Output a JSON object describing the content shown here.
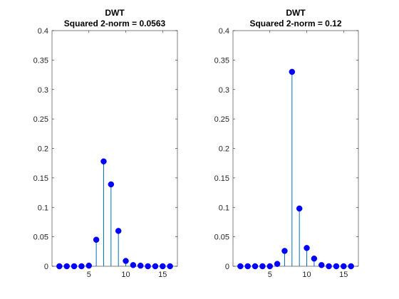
{
  "chart_data": [
    {
      "type": "stem",
      "title": "DWT",
      "subtitle": "Squared 2-norm = 0.0563",
      "x": [
        1,
        2,
        3,
        4,
        5,
        6,
        7,
        8,
        9,
        10,
        11,
        12,
        13,
        14,
        15,
        16
      ],
      "values": [
        0,
        0,
        0,
        0,
        0.001,
        0.045,
        0.178,
        0.139,
        0.06,
        0.009,
        0.002,
        0.001,
        0,
        0,
        0,
        0
      ],
      "xlim": [
        0,
        17
      ],
      "ylim": [
        0,
        0.4
      ],
      "xticks": [
        5,
        10,
        15
      ],
      "yticks": [
        0,
        0.05,
        0.1,
        0.15,
        0.2,
        0.25,
        0.3,
        0.35,
        0.4
      ],
      "ytick_labels": [
        "0",
        "0.05",
        "0.1",
        "0.15",
        "0.2",
        "0.25",
        "0.3",
        "0.35",
        "0.4"
      ],
      "grid": false,
      "stem_color": "#0072BD",
      "marker_color": "#0000FF"
    },
    {
      "type": "stem",
      "title": "DWT",
      "subtitle": "Squared 2-norm = 0.12",
      "x": [
        1,
        2,
        3,
        4,
        5,
        6,
        7,
        8,
        9,
        10,
        11,
        12,
        13,
        14,
        15,
        16
      ],
      "values": [
        0,
        0,
        0,
        0,
        0,
        0.004,
        0.026,
        0.33,
        0.098,
        0.031,
        0.013,
        0.002,
        0,
        0,
        0,
        0
      ],
      "xlim": [
        0,
        17
      ],
      "ylim": [
        0,
        0.4
      ],
      "xticks": [
        5,
        10,
        15
      ],
      "yticks": [
        0,
        0.05,
        0.1,
        0.15,
        0.2,
        0.25,
        0.3,
        0.35,
        0.4
      ],
      "ytick_labels": [
        "0",
        "0.05",
        "0.1",
        "0.15",
        "0.2",
        "0.25",
        "0.3",
        "0.35",
        "0.4"
      ],
      "grid": false,
      "stem_color": "#0072BD",
      "marker_color": "#0000FF"
    }
  ]
}
